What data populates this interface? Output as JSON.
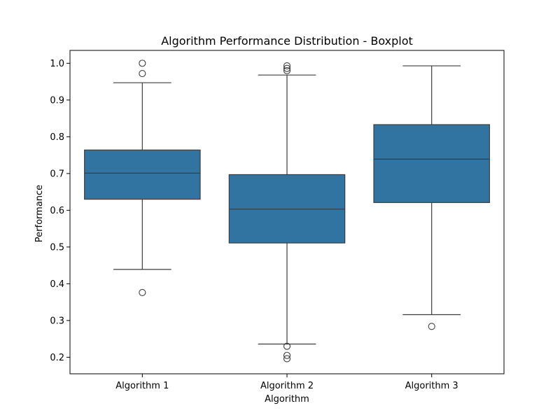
{
  "chart_data": {
    "type": "boxplot",
    "title": "Algorithm Performance Distribution - Boxplot",
    "xlabel": "Algorithm",
    "ylabel": "Performance",
    "categories": [
      "Algorithm 1",
      "Algorithm 2",
      "Algorithm 3"
    ],
    "ylim": [
      0.155,
      1.035
    ],
    "yticks": [
      0.2,
      0.3,
      0.4,
      0.5,
      0.6,
      0.7,
      0.8,
      0.9,
      1.0
    ],
    "ytick_labels": [
      "0.2",
      "0.3",
      "0.4",
      "0.5",
      "0.6",
      "0.7",
      "0.8",
      "0.9",
      "1.0"
    ],
    "box_color": "#3274a1",
    "line_color": "#3d3d3d",
    "grid": false,
    "boxes": [
      {
        "category": "Algorithm 1",
        "whisker_low": 0.439,
        "q1": 0.63,
        "median": 0.701,
        "q3": 0.764,
        "whisker_high": 0.947,
        "outliers": [
          0.376,
          0.972,
          1.0
        ]
      },
      {
        "category": "Algorithm 2",
        "whisker_low": 0.236,
        "q1": 0.511,
        "median": 0.603,
        "q3": 0.697,
        "whisker_high": 0.968,
        "outliers": [
          0.196,
          0.205,
          0.23,
          0.98,
          0.986,
          0.993
        ]
      },
      {
        "category": "Algorithm 3",
        "whisker_low": 0.316,
        "q1": 0.621,
        "median": 0.739,
        "q3": 0.833,
        "whisker_high": 0.993,
        "outliers": [
          0.284
        ]
      }
    ]
  }
}
